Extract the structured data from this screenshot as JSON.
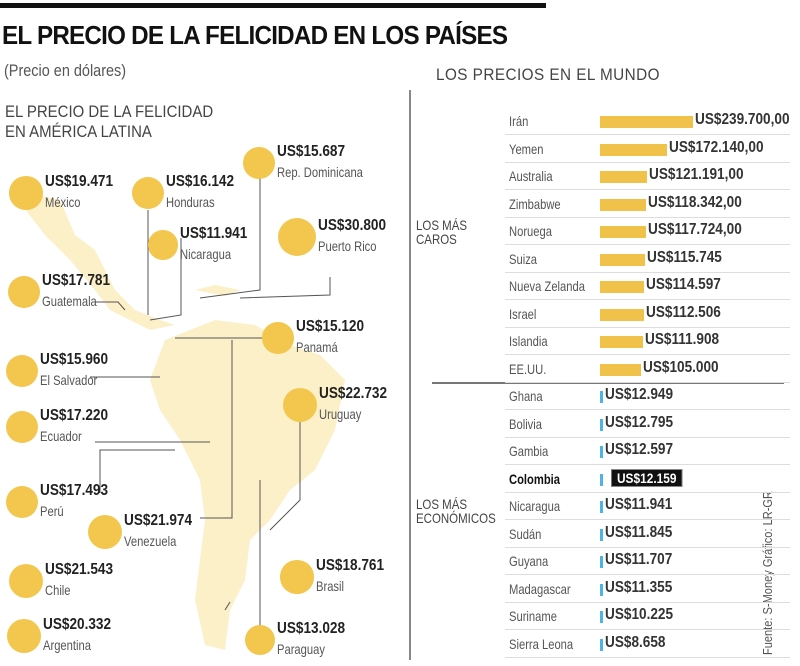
{
  "title": "EL PRECIO DE LA FELICIDAD EN LOS PAÍSES",
  "subtitle": "(Precio en dólares)",
  "source": "Fuente: S-Money   Gráfico: LR-GR",
  "colors": {
    "bubble": "#f3c64e",
    "bar_expensive": "#f0c24a",
    "bar_cheap": "#4fb3e6",
    "highlight": "#111111"
  },
  "chart_data": [
    {
      "type": "bubble-map",
      "title": "EL PRECIO DE LA FELICIDAD EN AMÉRICA LATINA",
      "points": [
        {
          "country": "México",
          "label": "US$19.471",
          "value": 19471
        },
        {
          "country": "Honduras",
          "label": "US$16.142",
          "value": 16142
        },
        {
          "country": "Rep. Dominicana",
          "label": "US$15.687",
          "value": 15687
        },
        {
          "country": "Nicaragua",
          "label": "US$11.941",
          "value": 11941
        },
        {
          "country": "Puerto Rico",
          "label": "US$30.800",
          "value": 30800
        },
        {
          "country": "Guatemala",
          "label": "US$17.781",
          "value": 17781
        },
        {
          "country": "Panamá",
          "label": "US$15.120",
          "value": 15120
        },
        {
          "country": "El Salvador",
          "label": "US$15.960",
          "value": 15960
        },
        {
          "country": "Uruguay",
          "label": "US$22.732",
          "value": 22732
        },
        {
          "country": "Ecuador",
          "label": "US$17.220",
          "value": 17220
        },
        {
          "country": "Perú",
          "label": "US$17.493",
          "value": 17493
        },
        {
          "country": "Venezuela",
          "label": "US$21.974",
          "value": 21974
        },
        {
          "country": "Brasil",
          "label": "US$18.761",
          "value": 18761
        },
        {
          "country": "Chile",
          "label": "US$21.543",
          "value": 21543
        },
        {
          "country": "Argentina",
          "label": "US$20.332",
          "value": 20332
        },
        {
          "country": "Paraguay",
          "label": "US$13.028",
          "value": 13028
        }
      ]
    },
    {
      "type": "bar",
      "title": "LOS PRECIOS EN EL MUNDO",
      "groups": [
        {
          "name": "LOS MÁS CAROS",
          "categories": [
            "Irán",
            "Yemen",
            "Australia",
            "Zimbabwe",
            "Noruega",
            "Suiza",
            "Nueva Zelanda",
            "Israel",
            "Islandia",
            "EE.UU."
          ],
          "labels": [
            "US$239.700,00",
            "US$172.140,00",
            "US$121.191,00",
            "US$118.342,00",
            "US$117.724,00",
            "US$115.745",
            "US$114.597",
            "US$112.506",
            "US$111.908",
            "US$105.000"
          ],
          "values": [
            239700,
            172140,
            121191,
            118342,
            117724,
            115745,
            114597,
            112506,
            111908,
            105000
          ]
        },
        {
          "name": "LOS MÁS ECONÓMICOS",
          "categories": [
            "Ghana",
            "Bolivia",
            "Gambia",
            "Colombia",
            "Nicaragua",
            "Sudán",
            "Guyana",
            "Madagascar",
            "Suriname",
            "Sierra Leona"
          ],
          "labels": [
            "US$12.949",
            "US$12.795",
            "US$12.597",
            "US$12.159",
            "US$11.941",
            "US$11.845",
            "US$11.707",
            "US$11.355",
            "US$10.225",
            "US$8.658"
          ],
          "values": [
            12949,
            12795,
            12597,
            12159,
            11941,
            11845,
            11707,
            11355,
            10225,
            8658
          ],
          "highlight": "Colombia"
        }
      ]
    }
  ]
}
